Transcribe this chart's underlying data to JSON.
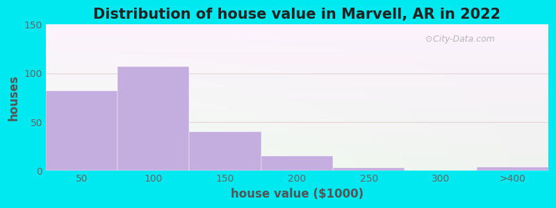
{
  "title": "Distribution of house value in Marvell, AR in 2022",
  "xlabel": "house value ($1000)",
  "ylabel": "houses",
  "bar_values": [
    82,
    107,
    40,
    15,
    3,
    0,
    4
  ],
  "bar_labels": [
    "50",
    "100",
    "150",
    "200",
    "250",
    "300",
    ">400"
  ],
  "bar_color": "#c4aee0",
  "ylim": [
    0,
    150
  ],
  "yticks": [
    0,
    50,
    100,
    150
  ],
  "background_outer": "#00e8f0",
  "title_fontsize": 15,
  "axis_label_fontsize": 12,
  "tick_fontsize": 10,
  "watermark_text": "City-Data.com",
  "figsize": [
    8.0,
    3.0
  ],
  "dpi": 100
}
